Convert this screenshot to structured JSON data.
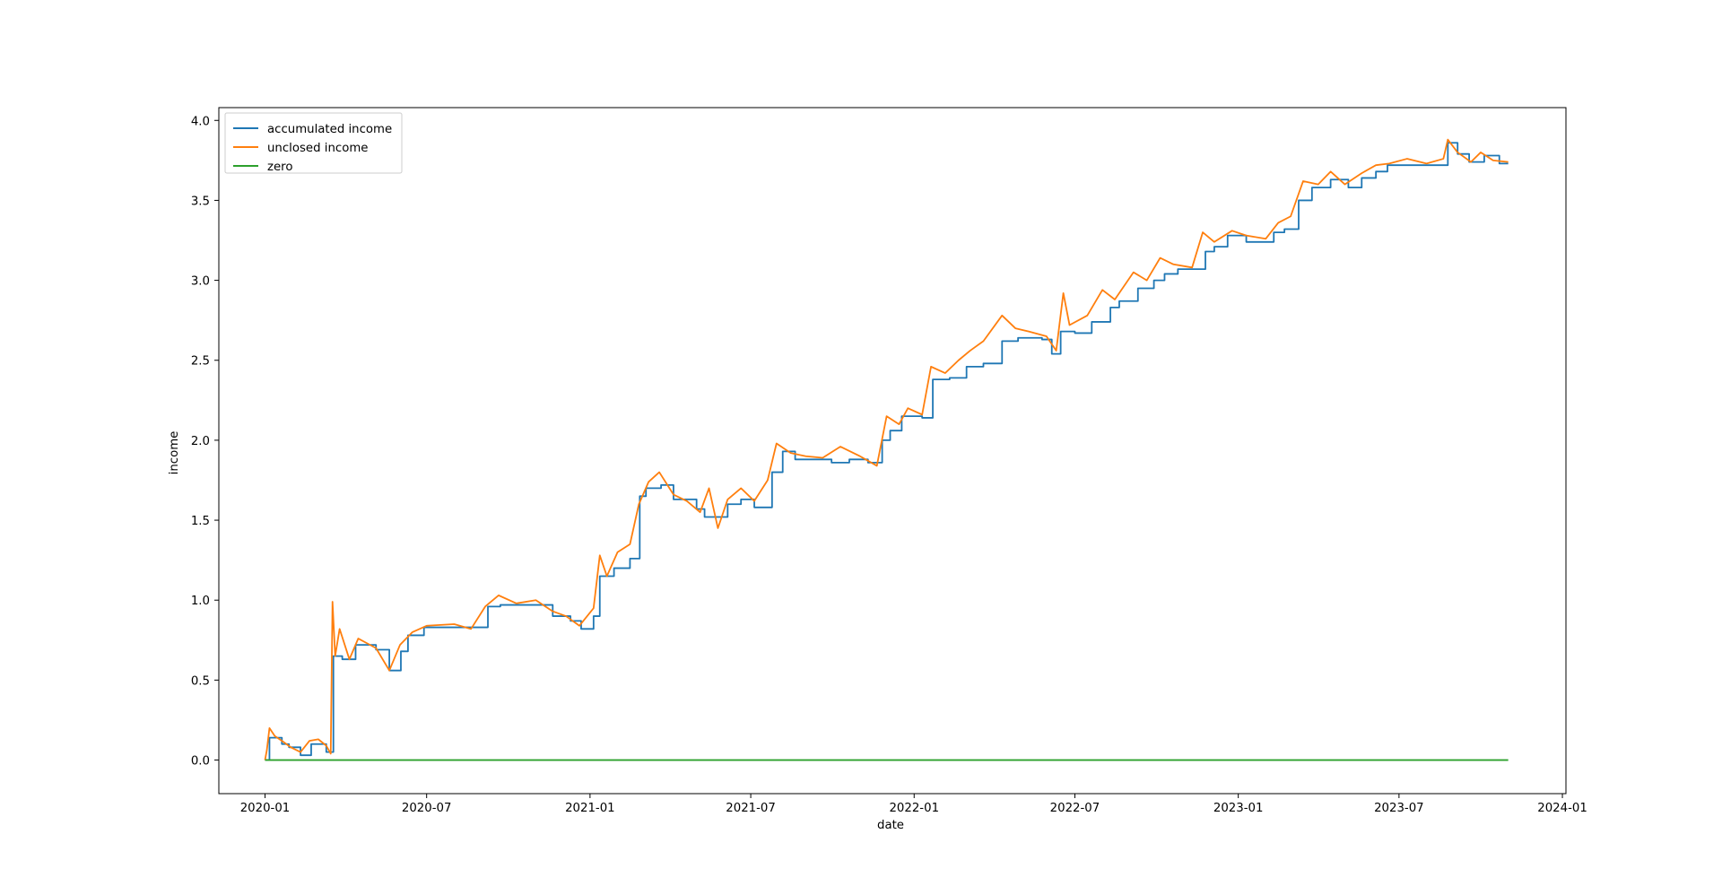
{
  "chart_data": {
    "type": "line",
    "xlabel": "date",
    "ylabel": "income",
    "xlim": [
      "2019-11-10",
      "2024-01-05"
    ],
    "ylim": [
      -0.21,
      4.08
    ],
    "x_ticks": [
      "2020-01",
      "2020-07",
      "2021-01",
      "2021-07",
      "2022-01",
      "2022-07",
      "2023-01",
      "2023-07",
      "2024-01"
    ],
    "y_ticks": [
      "0.0",
      "0.5",
      "1.0",
      "1.5",
      "2.0",
      "2.5",
      "3.0",
      "3.5",
      "4.0"
    ],
    "grid": false,
    "legend_position": "upper-left",
    "series": [
      {
        "name": "accumulated income",
        "color": "#1f77b4",
        "step": true,
        "points": [
          [
            "2020-01-01",
            0.0
          ],
          [
            "2020-01-06",
            0.14
          ],
          [
            "2020-01-20",
            0.1
          ],
          [
            "2020-01-28",
            0.08
          ],
          [
            "2020-02-10",
            0.03
          ],
          [
            "2020-02-22",
            0.1
          ],
          [
            "2020-03-10",
            0.05
          ],
          [
            "2020-03-18",
            0.65
          ],
          [
            "2020-03-28",
            0.63
          ],
          [
            "2020-04-12",
            0.72
          ],
          [
            "2020-05-05",
            0.69
          ],
          [
            "2020-05-20",
            0.56
          ],
          [
            "2020-06-02",
            0.68
          ],
          [
            "2020-06-10",
            0.78
          ],
          [
            "2020-06-28",
            0.83
          ],
          [
            "2020-08-20",
            0.83
          ],
          [
            "2020-09-08",
            0.96
          ],
          [
            "2020-09-22",
            0.97
          ],
          [
            "2020-11-20",
            0.9
          ],
          [
            "2020-12-10",
            0.87
          ],
          [
            "2020-12-22",
            0.82
          ],
          [
            "2021-01-05",
            0.9
          ],
          [
            "2021-01-12",
            1.15
          ],
          [
            "2021-01-28",
            1.2
          ],
          [
            "2021-02-15",
            1.26
          ],
          [
            "2021-02-26",
            1.65
          ],
          [
            "2021-03-05",
            1.7
          ],
          [
            "2021-03-22",
            1.72
          ],
          [
            "2021-04-05",
            1.63
          ],
          [
            "2021-05-01",
            1.57
          ],
          [
            "2021-05-10",
            1.52
          ],
          [
            "2021-06-05",
            1.6
          ],
          [
            "2021-06-20",
            1.63
          ],
          [
            "2021-07-05",
            1.58
          ],
          [
            "2021-07-25",
            1.8
          ],
          [
            "2021-08-06",
            1.93
          ],
          [
            "2021-08-20",
            1.88
          ],
          [
            "2021-09-30",
            1.86
          ],
          [
            "2021-10-20",
            1.88
          ],
          [
            "2021-11-10",
            1.86
          ],
          [
            "2021-11-26",
            2.0
          ],
          [
            "2021-12-05",
            2.06
          ],
          [
            "2021-12-18",
            2.15
          ],
          [
            "2022-01-10",
            2.14
          ],
          [
            "2022-01-22",
            2.38
          ],
          [
            "2022-02-10",
            2.39
          ],
          [
            "2022-03-01",
            2.46
          ],
          [
            "2022-03-20",
            2.48
          ],
          [
            "2022-04-10",
            2.62
          ],
          [
            "2022-04-28",
            2.64
          ],
          [
            "2022-05-25",
            2.63
          ],
          [
            "2022-06-05",
            2.54
          ],
          [
            "2022-06-15",
            2.68
          ],
          [
            "2022-07-01",
            2.67
          ],
          [
            "2022-07-20",
            2.74
          ],
          [
            "2022-08-10",
            2.83
          ],
          [
            "2022-08-20",
            2.87
          ],
          [
            "2022-09-10",
            2.95
          ],
          [
            "2022-09-28",
            3.0
          ],
          [
            "2022-10-10",
            3.04
          ],
          [
            "2022-10-25",
            3.07
          ],
          [
            "2022-11-25",
            3.18
          ],
          [
            "2022-12-05",
            3.21
          ],
          [
            "2022-12-20",
            3.28
          ],
          [
            "2023-01-10",
            3.24
          ],
          [
            "2023-02-10",
            3.3
          ],
          [
            "2023-02-22",
            3.32
          ],
          [
            "2023-03-10",
            3.5
          ],
          [
            "2023-03-25",
            3.58
          ],
          [
            "2023-04-15",
            3.63
          ],
          [
            "2023-05-05",
            3.58
          ],
          [
            "2023-05-20",
            3.64
          ],
          [
            "2023-06-05",
            3.68
          ],
          [
            "2023-06-18",
            3.72
          ],
          [
            "2023-08-10",
            3.72
          ],
          [
            "2023-08-25",
            3.86
          ],
          [
            "2023-09-05",
            3.79
          ],
          [
            "2023-09-18",
            3.74
          ],
          [
            "2023-10-05",
            3.78
          ],
          [
            "2023-10-22",
            3.73
          ],
          [
            "2023-11-01",
            3.73
          ]
        ]
      },
      {
        "name": "unclosed income",
        "color": "#ff7f0e",
        "step": false,
        "points": [
          [
            "2020-01-01",
            0.0
          ],
          [
            "2020-01-03",
            0.06
          ],
          [
            "2020-01-06",
            0.2
          ],
          [
            "2020-01-12",
            0.15
          ],
          [
            "2020-01-20",
            0.12
          ],
          [
            "2020-01-30",
            0.08
          ],
          [
            "2020-02-10",
            0.05
          ],
          [
            "2020-02-20",
            0.12
          ],
          [
            "2020-03-01",
            0.13
          ],
          [
            "2020-03-10",
            0.09
          ],
          [
            "2020-03-15",
            0.04
          ],
          [
            "2020-03-17",
            0.99
          ],
          [
            "2020-03-20",
            0.65
          ],
          [
            "2020-03-25",
            0.82
          ],
          [
            "2020-04-05",
            0.63
          ],
          [
            "2020-04-15",
            0.76
          ],
          [
            "2020-04-25",
            0.73
          ],
          [
            "2020-05-05",
            0.7
          ],
          [
            "2020-05-20",
            0.56
          ],
          [
            "2020-06-01",
            0.72
          ],
          [
            "2020-06-15",
            0.8
          ],
          [
            "2020-07-01",
            0.84
          ],
          [
            "2020-08-01",
            0.85
          ],
          [
            "2020-08-20",
            0.82
          ],
          [
            "2020-09-05",
            0.96
          ],
          [
            "2020-09-20",
            1.03
          ],
          [
            "2020-10-10",
            0.98
          ],
          [
            "2020-11-01",
            1.0
          ],
          [
            "2020-11-20",
            0.93
          ],
          [
            "2020-12-05",
            0.9
          ],
          [
            "2020-12-20",
            0.84
          ],
          [
            "2021-01-05",
            0.95
          ],
          [
            "2021-01-12",
            1.28
          ],
          [
            "2021-01-20",
            1.15
          ],
          [
            "2021-02-01",
            1.3
          ],
          [
            "2021-02-15",
            1.35
          ],
          [
            "2021-02-25",
            1.6
          ],
          [
            "2021-03-08",
            1.74
          ],
          [
            "2021-03-20",
            1.8
          ],
          [
            "2021-04-05",
            1.66
          ],
          [
            "2021-04-20",
            1.62
          ],
          [
            "2021-05-05",
            1.55
          ],
          [
            "2021-05-15",
            1.7
          ],
          [
            "2021-05-25",
            1.45
          ],
          [
            "2021-06-05",
            1.63
          ],
          [
            "2021-06-20",
            1.7
          ],
          [
            "2021-07-05",
            1.62
          ],
          [
            "2021-07-20",
            1.75
          ],
          [
            "2021-07-30",
            1.98
          ],
          [
            "2021-08-15",
            1.92
          ],
          [
            "2021-09-01",
            1.9
          ],
          [
            "2021-09-20",
            1.89
          ],
          [
            "2021-10-10",
            1.96
          ],
          [
            "2021-11-01",
            1.9
          ],
          [
            "2021-11-20",
            1.84
          ],
          [
            "2021-12-01",
            2.15
          ],
          [
            "2021-12-15",
            2.1
          ],
          [
            "2021-12-25",
            2.2
          ],
          [
            "2022-01-10",
            2.16
          ],
          [
            "2022-01-20",
            2.46
          ],
          [
            "2022-02-05",
            2.42
          ],
          [
            "2022-02-20",
            2.5
          ],
          [
            "2022-03-05",
            2.56
          ],
          [
            "2022-03-20",
            2.62
          ],
          [
            "2022-04-10",
            2.78
          ],
          [
            "2022-04-25",
            2.7
          ],
          [
            "2022-05-10",
            2.68
          ],
          [
            "2022-05-30",
            2.65
          ],
          [
            "2022-06-10",
            2.56
          ],
          [
            "2022-06-18",
            2.92
          ],
          [
            "2022-06-25",
            2.72
          ],
          [
            "2022-07-15",
            2.78
          ],
          [
            "2022-08-01",
            2.94
          ],
          [
            "2022-08-15",
            2.88
          ],
          [
            "2022-09-05",
            3.05
          ],
          [
            "2022-09-20",
            3.0
          ],
          [
            "2022-10-05",
            3.14
          ],
          [
            "2022-10-20",
            3.1
          ],
          [
            "2022-11-10",
            3.08
          ],
          [
            "2022-11-22",
            3.3
          ],
          [
            "2022-12-05",
            3.24
          ],
          [
            "2022-12-25",
            3.31
          ],
          [
            "2023-01-10",
            3.28
          ],
          [
            "2023-02-01",
            3.26
          ],
          [
            "2023-02-15",
            3.36
          ],
          [
            "2023-03-01",
            3.4
          ],
          [
            "2023-03-15",
            3.62
          ],
          [
            "2023-04-01",
            3.6
          ],
          [
            "2023-04-15",
            3.68
          ],
          [
            "2023-05-01",
            3.6
          ],
          [
            "2023-05-20",
            3.67
          ],
          [
            "2023-06-05",
            3.72
          ],
          [
            "2023-06-20",
            3.73
          ],
          [
            "2023-07-10",
            3.76
          ],
          [
            "2023-08-01",
            3.73
          ],
          [
            "2023-08-20",
            3.76
          ],
          [
            "2023-08-25",
            3.88
          ],
          [
            "2023-09-05",
            3.8
          ],
          [
            "2023-09-20",
            3.74
          ],
          [
            "2023-10-01",
            3.8
          ],
          [
            "2023-10-15",
            3.75
          ],
          [
            "2023-11-01",
            3.74
          ]
        ]
      },
      {
        "name": "zero",
        "color": "#2ca02c",
        "step": false,
        "points": [
          [
            "2020-01-01",
            0.0
          ],
          [
            "2023-11-01",
            0.0
          ]
        ]
      }
    ]
  }
}
